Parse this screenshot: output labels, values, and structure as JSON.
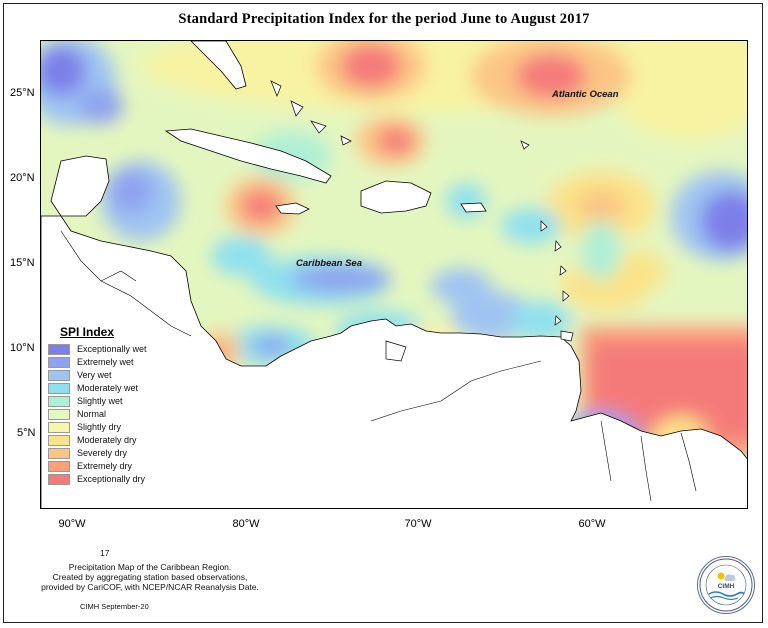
{
  "title": "Standard Precipitation Index for the period June to August 2017",
  "y_axis_labels": [
    "25°N",
    "20°N",
    "15°N",
    "10°N",
    "5°N"
  ],
  "x_axis_labels": [
    "90°W",
    "80°W",
    "70°W",
    "60°W"
  ],
  "map_labels": {
    "atlantic": "Atlantic Ocean",
    "caribbean": "Caribbean Sea"
  },
  "legend": {
    "title": "SPI Index",
    "items": [
      {
        "label": "Exceptionally wet",
        "color": "#7b7fe8"
      },
      {
        "label": "Extremely wet",
        "color": "#8fa2ef"
      },
      {
        "label": "Very wet",
        "color": "#9fc4f2"
      },
      {
        "label": "Moderately wet",
        "color": "#8fe0ef"
      },
      {
        "label": "Slightly wet",
        "color": "#aef0d6"
      },
      {
        "label": "Normal",
        "color": "#e6f8c2"
      },
      {
        "label": "Slightly dry",
        "color": "#f6f7a8"
      },
      {
        "label": "Moderately dry",
        "color": "#fbe389"
      },
      {
        "label": "Severely dry",
        "color": "#fbc585"
      },
      {
        "label": "Extremely dry",
        "color": "#f9a27a"
      },
      {
        "label": "Exceptionally dry",
        "color": "#f47a7a"
      }
    ]
  },
  "footnote": {
    "page_number": "17",
    "line1": "Precipitation Map of the Caribbean Region.",
    "line2": "Created by aggregating station based observations,",
    "line3": "provided by CariCOF, with NCEP/NCAR Reanalysis Date.",
    "credit": "CIMH September-20"
  },
  "logo_text": "CIMH"
}
